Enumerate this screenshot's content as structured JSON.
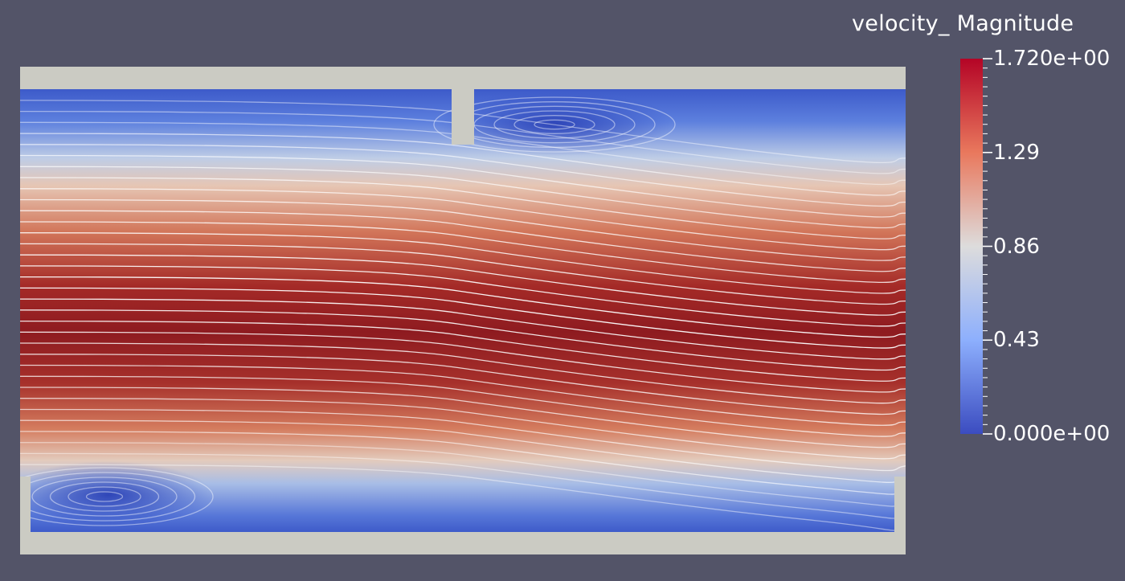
{
  "legend": {
    "title": "velocity_ Magnitude",
    "min_label": "0.000e+00",
    "max_label": "1.720e+00",
    "tick_labels": [
      "1.29",
      "0.86",
      "0.43"
    ],
    "range": [
      0,
      1.72
    ],
    "ticks": [
      1.29,
      0.86,
      0.43
    ]
  },
  "colors": {
    "background": "#535468",
    "wall": "#cbcbc3",
    "streamline": "#ffffff",
    "colormap": [
      "#3b4cc0",
      "#b8d0f9",
      "#dddcdc",
      "#f5a486",
      "#b40426"
    ]
  }
}
